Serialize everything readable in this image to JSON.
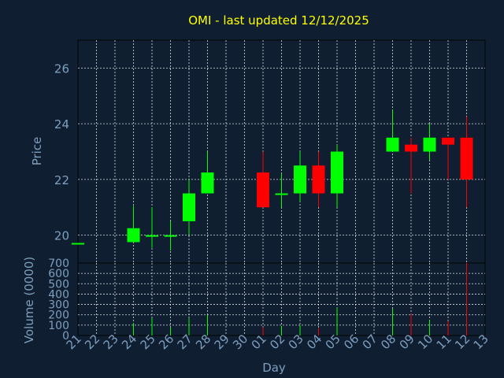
{
  "chart_data": {
    "type": "candlestick",
    "title": "OMI - last updated 12/12/2025",
    "xlabel": "Day",
    "ylabel": "Price",
    "volume_label": "Volume (0000)",
    "x_ticks": [
      "21",
      "22",
      "23",
      "24",
      "25",
      "26",
      "27",
      "28",
      "29",
      "30",
      "01",
      "02",
      "03",
      "04",
      "05",
      "06",
      "07",
      "08",
      "09",
      "10",
      "11",
      "12",
      "13"
    ],
    "price_ticks": [
      20,
      22,
      24,
      26
    ],
    "price_range": [
      19,
      27
    ],
    "volume_ticks": [
      0,
      100,
      200,
      300,
      400,
      500,
      600,
      700
    ],
    "volume_range": [
      0,
      700
    ],
    "grid": true,
    "colors": {
      "background": "#0f1f31",
      "axes": "#000000",
      "grid": "#ffffff",
      "up": "#00ff00",
      "down": "#ff0000",
      "title": "#ffff00",
      "label": "#7f9fbf"
    },
    "candles": [
      {
        "day": "21",
        "open": 19.72,
        "high": 19.72,
        "low": 19.72,
        "close": 19.72
      },
      {
        "day": "24",
        "open": 19.75,
        "high": 21.05,
        "low": 19.75,
        "close": 20.25
      },
      {
        "day": "25",
        "open": 19.97,
        "high": 21.0,
        "low": 19.55,
        "close": 20.0
      },
      {
        "day": "26",
        "open": 19.97,
        "high": 20.5,
        "low": 19.45,
        "close": 20.0
      },
      {
        "day": "27",
        "open": 20.5,
        "high": 22.0,
        "low": 20.0,
        "close": 21.5
      },
      {
        "day": "28",
        "open": 21.5,
        "high": 23.0,
        "low": 21.5,
        "close": 22.25
      },
      {
        "day": "01",
        "open": 22.25,
        "high": 23.0,
        "low": 21.0,
        "close": 21.0
      },
      {
        "day": "02",
        "open": 21.45,
        "high": 22.2,
        "low": 21.0,
        "close": 21.5
      },
      {
        "day": "03",
        "open": 21.5,
        "high": 23.0,
        "low": 21.2,
        "close": 22.5
      },
      {
        "day": "04",
        "open": 22.5,
        "high": 23.0,
        "low": 21.0,
        "close": 21.5
      },
      {
        "day": "05",
        "open": 21.5,
        "high": 23.25,
        "low": 21.0,
        "close": 23.0
      },
      {
        "day": "08",
        "open": 23.0,
        "high": 24.5,
        "low": 23.0,
        "close": 23.5
      },
      {
        "day": "09",
        "open": 23.25,
        "high": 23.5,
        "low": 21.5,
        "close": 23.0
      },
      {
        "day": "10",
        "open": 23.0,
        "high": 24.0,
        "low": 22.7,
        "close": 23.5
      },
      {
        "day": "11",
        "open": 23.5,
        "high": 23.5,
        "low": 22.0,
        "close": 23.25
      },
      {
        "day": "12",
        "open": 23.5,
        "high": 24.25,
        "low": 21.0,
        "close": 22.0
      }
    ],
    "volumes": [
      {
        "day": "21",
        "value": 0,
        "dir": "up"
      },
      {
        "day": "24",
        "value": 120,
        "dir": "up"
      },
      {
        "day": "25",
        "value": 170,
        "dir": "up"
      },
      {
        "day": "26",
        "value": 80,
        "dir": "up"
      },
      {
        "day": "27",
        "value": 170,
        "dir": "up"
      },
      {
        "day": "28",
        "value": 200,
        "dir": "up"
      },
      {
        "day": "01",
        "value": 80,
        "dir": "down"
      },
      {
        "day": "02",
        "value": 90,
        "dir": "up"
      },
      {
        "day": "03",
        "value": 100,
        "dir": "up"
      },
      {
        "day": "04",
        "value": 70,
        "dir": "down"
      },
      {
        "day": "05",
        "value": 270,
        "dir": "up"
      },
      {
        "day": "08",
        "value": 260,
        "dir": "up"
      },
      {
        "day": "09",
        "value": 210,
        "dir": "down"
      },
      {
        "day": "10",
        "value": 150,
        "dir": "up"
      },
      {
        "day": "11",
        "value": 140,
        "dir": "down"
      },
      {
        "day": "12",
        "value": 700,
        "dir": "down"
      }
    ]
  }
}
